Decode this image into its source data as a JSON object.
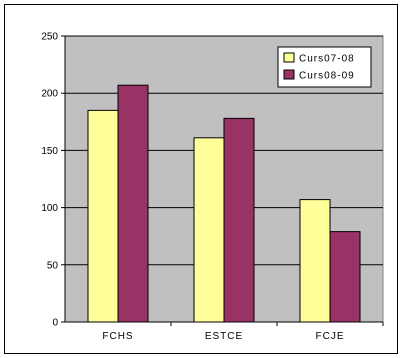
{
  "chart_data": {
    "type": "bar",
    "categories": [
      "FCHS",
      "ESTCE",
      "FCJE"
    ],
    "series": [
      {
        "name": "Curs07-08",
        "color": "#ffff99",
        "values": [
          185,
          161,
          107
        ]
      },
      {
        "name": "Curs08-09",
        "color": "#993366",
        "values": [
          207,
          178,
          79
        ]
      }
    ],
    "ylim": [
      0,
      250
    ],
    "yticks": [
      0,
      50,
      100,
      150,
      200,
      250
    ],
    "grid": true,
    "legend": "top-right",
    "plot_background": "#c0c0c0"
  }
}
